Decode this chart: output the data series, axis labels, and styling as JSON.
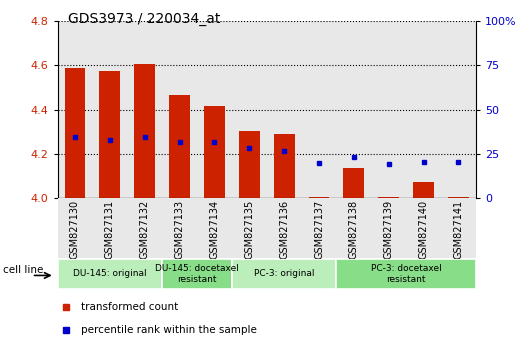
{
  "title": "GDS3973 / 220034_at",
  "samples": [
    "GSM827130",
    "GSM827131",
    "GSM827132",
    "GSM827133",
    "GSM827134",
    "GSM827135",
    "GSM827136",
    "GSM827137",
    "GSM827138",
    "GSM827139",
    "GSM827140",
    "GSM827141"
  ],
  "bar_values": [
    4.59,
    4.575,
    4.605,
    4.465,
    4.415,
    4.305,
    4.29,
    4.005,
    4.135,
    4.005,
    4.075,
    4.005
  ],
  "bar_base": 4.0,
  "dot_values": [
    4.275,
    4.265,
    4.275,
    4.255,
    4.255,
    4.225,
    4.215,
    4.16,
    4.185,
    4.155,
    4.165,
    4.165
  ],
  "ylim_left": [
    4.0,
    4.8
  ],
  "ylim_right": [
    0,
    100
  ],
  "yticks_left": [
    4.0,
    4.2,
    4.4,
    4.6,
    4.8
  ],
  "yticks_right": [
    0,
    25,
    50,
    75,
    100
  ],
  "bar_color": "#cc2200",
  "dot_color": "#0000cc",
  "cell_line_groups": [
    {
      "label": "DU-145: original",
      "start": 0,
      "end": 2,
      "color": "#bbeebb"
    },
    {
      "label": "DU-145: docetaxel\nresistant",
      "start": 3,
      "end": 4,
      "color": "#88dd88"
    },
    {
      "label": "PC-3: original",
      "start": 5,
      "end": 7,
      "color": "#bbeebb"
    },
    {
      "label": "PC-3: docetaxel\nresistant",
      "start": 8,
      "end": 11,
      "color": "#88dd88"
    }
  ],
  "legend_items": [
    {
      "label": "transformed count",
      "color": "#cc2200"
    },
    {
      "label": "percentile rank within the sample",
      "color": "#0000cc"
    }
  ],
  "cell_line_label": "cell line",
  "background_color": "#ffffff",
  "grid_color": "#000000",
  "column_bg_color": "#e8e8e8"
}
